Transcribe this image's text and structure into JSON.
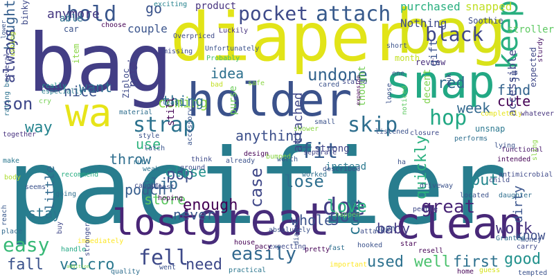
{
  "words": [
    {
      "text": "pacifier",
      "color": "#287d8e"
    },
    {
      "text": "bag",
      "color": "#433e85"
    },
    {
      "text": "diaper",
      "color": "#e2e418"
    },
    {
      "text": "bag",
      "color": "#d8e219"
    },
    {
      "text": "snap",
      "color": "#22a884"
    },
    {
      "text": "holder",
      "color": "#3b528b"
    },
    {
      "text": "great",
      "color": "#472c7a"
    },
    {
      "text": "lost",
      "color": "#482576"
    },
    {
      "text": "clean",
      "color": "#482878"
    },
    {
      "text": "keep",
      "color": "#29af7f"
    },
    {
      "text": "wa",
      "color": "#e7e419"
    },
    {
      "text": "hold",
      "color": "#39568c"
    },
    {
      "text": "attach",
      "color": "#375a8c"
    },
    {
      "text": "pocket",
      "color": "#3e4a89"
    },
    {
      "text": "strap",
      "color": "#2c728e"
    },
    {
      "text": "skip",
      "color": "#2e6e8e"
    },
    {
      "text": "hop",
      "color": "#22a884"
    },
    {
      "text": "fit",
      "color": "#365c8d"
    },
    {
      "text": "doe",
      "color": "#433e85"
    },
    {
      "text": "easy",
      "color": "#38b977"
    },
    {
      "text": "fell",
      "color": "#3e4a89"
    },
    {
      "text": "easily",
      "color": "#31688e"
    },
    {
      "text": "great",
      "color": "#482576"
    },
    {
      "text": "undone",
      "color": "#33638d"
    },
    {
      "text": "black",
      "color": "#3f4788"
    },
    {
      "text": "go",
      "color": "#3a538b"
    },
    {
      "text": "bought",
      "color": "#355f8d"
    },
    {
      "text": "always",
      "color": "#404688"
    },
    {
      "text": "son",
      "color": "#3f4889"
    },
    {
      "text": "way",
      "color": "#25848e"
    },
    {
      "text": "stay",
      "color": "#2b748e"
    },
    {
      "text": "little",
      "color": "#306a8e"
    },
    {
      "text": "fall",
      "color": "#3b528b"
    },
    {
      "text": "velcro",
      "color": "#2a788e"
    },
    {
      "text": "need",
      "color": "#3e4989"
    },
    {
      "text": "used",
      "color": "#2c718e"
    },
    {
      "text": "well",
      "color": "#4ac16d"
    },
    {
      "text": "first",
      "color": "#2d718e"
    },
    {
      "text": "good",
      "color": "#21918c"
    },
    {
      "text": "know",
      "color": "#3d4e8a"
    },
    {
      "text": "baby",
      "color": "#443a83"
    },
    {
      "text": "come",
      "color": "#2a768e"
    },
    {
      "text": "work",
      "color": "#46337f"
    },
    {
      "text": "put",
      "color": "#24868e"
    },
    {
      "text": "lose",
      "color": "#2e6f8e"
    },
    {
      "text": "got",
      "color": "#3d4d8a"
    },
    {
      "text": "love",
      "color": "#28ae80"
    },
    {
      "text": "case",
      "color": "#3f4788"
    },
    {
      "text": "pop",
      "color": "#3c4f8a"
    },
    {
      "text": "enough",
      "color": "#440154"
    },
    {
      "text": "clip",
      "color": "#31688e"
    },
    {
      "text": "red",
      "color": "#306a8e"
    },
    {
      "text": "want",
      "color": "#2e6d8e"
    },
    {
      "text": "nice",
      "color": "#3b528b"
    },
    {
      "text": "idea",
      "color": "#2d708e"
    },
    {
      "text": "coming",
      "color": "#8bd646"
    },
    {
      "text": "thing",
      "color": "#2d708e"
    },
    {
      "text": "use",
      "color": "#2db27d"
    },
    {
      "text": "find",
      "color": "#33638d"
    },
    {
      "text": "cute",
      "color": "#440154"
    },
    {
      "text": "week",
      "color": "#31688e"
    },
    {
      "text": "pouch",
      "color": "#365d8d"
    },
    {
      "text": "throw",
      "color": "#2e6e8e"
    },
    {
      "text": "store",
      "color": "#5ec962"
    },
    {
      "text": "never",
      "color": "#38588c"
    },
    {
      "text": "whole",
      "color": "#3b528b"
    },
    {
      "text": "close",
      "color": "#21918c"
    },
    {
      "text": "anything",
      "color": "#3c4f8a"
    },
    {
      "text": "anymore",
      "color": "#453781"
    },
    {
      "text": "paci",
      "color": "#404588"
    },
    {
      "text": "couple",
      "color": "#3a548c"
    },
    {
      "text": "product",
      "color": "#46327e"
    },
    {
      "text": "purchased",
      "color": "#29af7f"
    },
    {
      "text": "Nothing",
      "color": "#3e4a89"
    },
    {
      "text": "snapped",
      "color": "#c0df25"
    },
    {
      "text": "stroller",
      "color": "#5ec962"
    },
    {
      "text": "able",
      "color": "#2c718e"
    },
    {
      "text": "car",
      "color": "#3b528b"
    },
    {
      "text": "item",
      "color": "#8bd646"
    },
    {
      "text": "binky",
      "color": "#3e4a89"
    },
    {
      "text": "choose",
      "color": "#440154"
    },
    {
      "text": "exciting",
      "color": "#26828e"
    },
    {
      "text": "missing",
      "color": "#3e4989"
    },
    {
      "text": "month",
      "color": "#c2df23"
    },
    {
      "text": "short",
      "color": "#3b528b"
    },
    {
      "text": "review",
      "color": "#472d7b"
    },
    {
      "text": "Soothie",
      "color": "#3e4c8a"
    },
    {
      "text": "decent",
      "color": "#7fd34e"
    },
    {
      "text": "gift",
      "color": "#3b528b"
    },
    {
      "text": "accessible",
      "color": "#3f4788"
    },
    {
      "text": "ju",
      "color": "#3d4e8a"
    },
    {
      "text": "dirty",
      "color": "#3a548c"
    },
    {
      "text": "quickly",
      "color": "#2ab07f"
    },
    {
      "text": "attached",
      "color": "#3f4788"
    },
    {
      "text": "instead",
      "color": "#2a788e"
    },
    {
      "text": "strong",
      "color": "#414487"
    },
    {
      "text": "purse",
      "color": "#6ccd5a"
    },
    {
      "text": "still",
      "color": "#440154"
    },
    {
      "text": "thought",
      "color": "#75d054"
    },
    {
      "text": "unsnap",
      "color": "#2a778e"
    },
    {
      "text": "expected",
      "color": "#3f4889"
    },
    {
      "text": "sturdy",
      "color": "#471365"
    },
    {
      "text": "functional",
      "color": "#48186a"
    },
    {
      "text": "completely",
      "color": "#e5e419"
    },
    {
      "text": "whatever",
      "color": "#45337d"
    },
    {
      "text": "lower",
      "color": "#3a548c"
    },
    {
      "text": "ushing",
      "color": "#b8de29"
    },
    {
      "text": "several",
      "color": "#404588"
    },
    {
      "text": "especially",
      "color": "#287d8e"
    },
    {
      "text": "really",
      "color": "#21918c"
    },
    {
      "text": "rating bc",
      "color": "#2c728e"
    },
    {
      "text": "cry",
      "color": "#75d054"
    },
    {
      "text": "together",
      "color": "#46307e"
    },
    {
      "text": "body",
      "color": "#addc30"
    },
    {
      "text": "make",
      "color": "#2a778e"
    },
    {
      "text": "reach",
      "color": "#38588c"
    },
    {
      "text": "place",
      "color": "#30698e"
    },
    {
      "text": "seems",
      "color": "#3b528b"
    },
    {
      "text": "recommend",
      "color": "#27ad81"
    },
    {
      "text": "going",
      "color": "#2e6e8e"
    },
    {
      "text": "buy",
      "color": "#3f4788"
    },
    {
      "text": "handle",
      "color": "#22a884"
    },
    {
      "text": "immediately",
      "color": "#fde725"
    },
    {
      "text": "stronger",
      "color": "#3e4a89"
    },
    {
      "text": "quality",
      "color": "#2e6e8e"
    },
    {
      "text": "addition",
      "color": "#7ad151"
    },
    {
      "text": "Ziploc",
      "color": "#3e4a89"
    },
    {
      "text": "Overpriced",
      "color": "#3e4a89"
    },
    {
      "text": "Unfortunately",
      "color": "#3b528b"
    },
    {
      "text": "Probably",
      "color": "#42be71"
    },
    {
      "text": "Luckily",
      "color": "#46327e"
    },
    {
      "text": "bad",
      "color": "#c2df23"
    },
    {
      "text": "safe",
      "color": "#8bd646"
    },
    {
      "text": "least",
      "color": "#31688e"
    },
    {
      "text": "material",
      "color": "#2e6e8e"
    },
    {
      "text": "already",
      "color": "#3b528b"
    },
    {
      "text": "design",
      "color": "#440154"
    },
    {
      "text": "small",
      "color": "#3b528b"
    },
    {
      "text": "shower",
      "color": "#8bd646"
    },
    {
      "text": "separate",
      "color": "#414487"
    },
    {
      "text": "bumped",
      "color": "#8bd646"
    },
    {
      "text": "worth",
      "color": "#38588c"
    },
    {
      "text": "think",
      "color": "#3e4a89"
    },
    {
      "text": "style",
      "color": "#3b528b"
    },
    {
      "text": "latch",
      "color": "#3a548c"
    },
    {
      "text": "accessory",
      "color": "#3a548c"
    },
    {
      "text": "ground",
      "color": "#3d4d8a"
    },
    {
      "text": "rub",
      "color": "#2c718e"
    },
    {
      "text": "weak",
      "color": "#2c728e"
    },
    {
      "text": "almost",
      "color": "#3e4a89"
    },
    {
      "text": "hoping",
      "color": "#440154"
    },
    {
      "text": "caught",
      "color": "#3e4989"
    },
    {
      "text": "went",
      "color": "#3b528b"
    },
    {
      "text": "practical",
      "color": "#2a768e"
    },
    {
      "text": "house",
      "color": "#440154"
    },
    {
      "text": "pacy",
      "color": "#440154"
    },
    {
      "text": "expecting",
      "color": "#3e4989"
    },
    {
      "text": "absolutely",
      "color": "#3b528b"
    },
    {
      "text": "diaper",
      "color": "#3b528b"
    },
    {
      "text": "pretty",
      "color": "#440154"
    },
    {
      "text": "fast",
      "color": "#2e6e8e"
    },
    {
      "text": "important",
      "color": "#fde725"
    },
    {
      "text": "open",
      "color": "#3b528b"
    },
    {
      "text": "attache",
      "color": "#3d4d8a"
    },
    {
      "text": "happen",
      "color": "#5ec962"
    },
    {
      "text": "hooked",
      "color": "#3b528b"
    },
    {
      "text": "worked",
      "color": "#2e6e8e"
    },
    {
      "text": "described",
      "color": "#3b528b"
    },
    {
      "text": "star",
      "color": "#440154"
    },
    {
      "text": "people",
      "color": "#3e4989"
    },
    {
      "text": "resell",
      "color": "#440154"
    },
    {
      "text": "guess",
      "color": "#d5e21a"
    },
    {
      "text": "tempted",
      "color": "#3b528b"
    },
    {
      "text": "carry",
      "color": "#3e4989"
    },
    {
      "text": "home",
      "color": "#440154"
    },
    {
      "text": "money",
      "color": "#3b528b"
    },
    {
      "text": "Granted",
      "color": "#2e6e8e"
    },
    {
      "text": "driveway",
      "color": "#3b528b"
    },
    {
      "text": "child",
      "color": "#3e4a89"
    },
    {
      "text": "located",
      "color": "#3b528b"
    },
    {
      "text": "daughter",
      "color": "#2e6e8e"
    },
    {
      "text": "antimicrobial",
      "color": "#3e4989"
    },
    {
      "text": "intended",
      "color": "#440154"
    },
    {
      "text": "lying",
      "color": "#3b528b"
    },
    {
      "text": "sling",
      "color": "#8bd646"
    },
    {
      "text": "ha",
      "color": "#3b528b"
    },
    {
      "text": "nuk",
      "color": "#3e4a89"
    },
    {
      "text": "loose",
      "color": "#3b528b"
    },
    {
      "text": "noticed",
      "color": "#5ec962"
    },
    {
      "text": "closure",
      "color": "#3e4989"
    },
    {
      "text": "performs",
      "color": "#2e6e8e"
    },
    {
      "text": "listened",
      "color": "#3b528b"
    },
    {
      "text": "stated",
      "color": "#3e4989"
    },
    {
      "text": "cared",
      "color": "#3b528b"
    },
    {
      "text": "expansion",
      "color": "#440154"
    },
    {
      "text": "one",
      "color": "#3b528b"
    }
  ]
}
